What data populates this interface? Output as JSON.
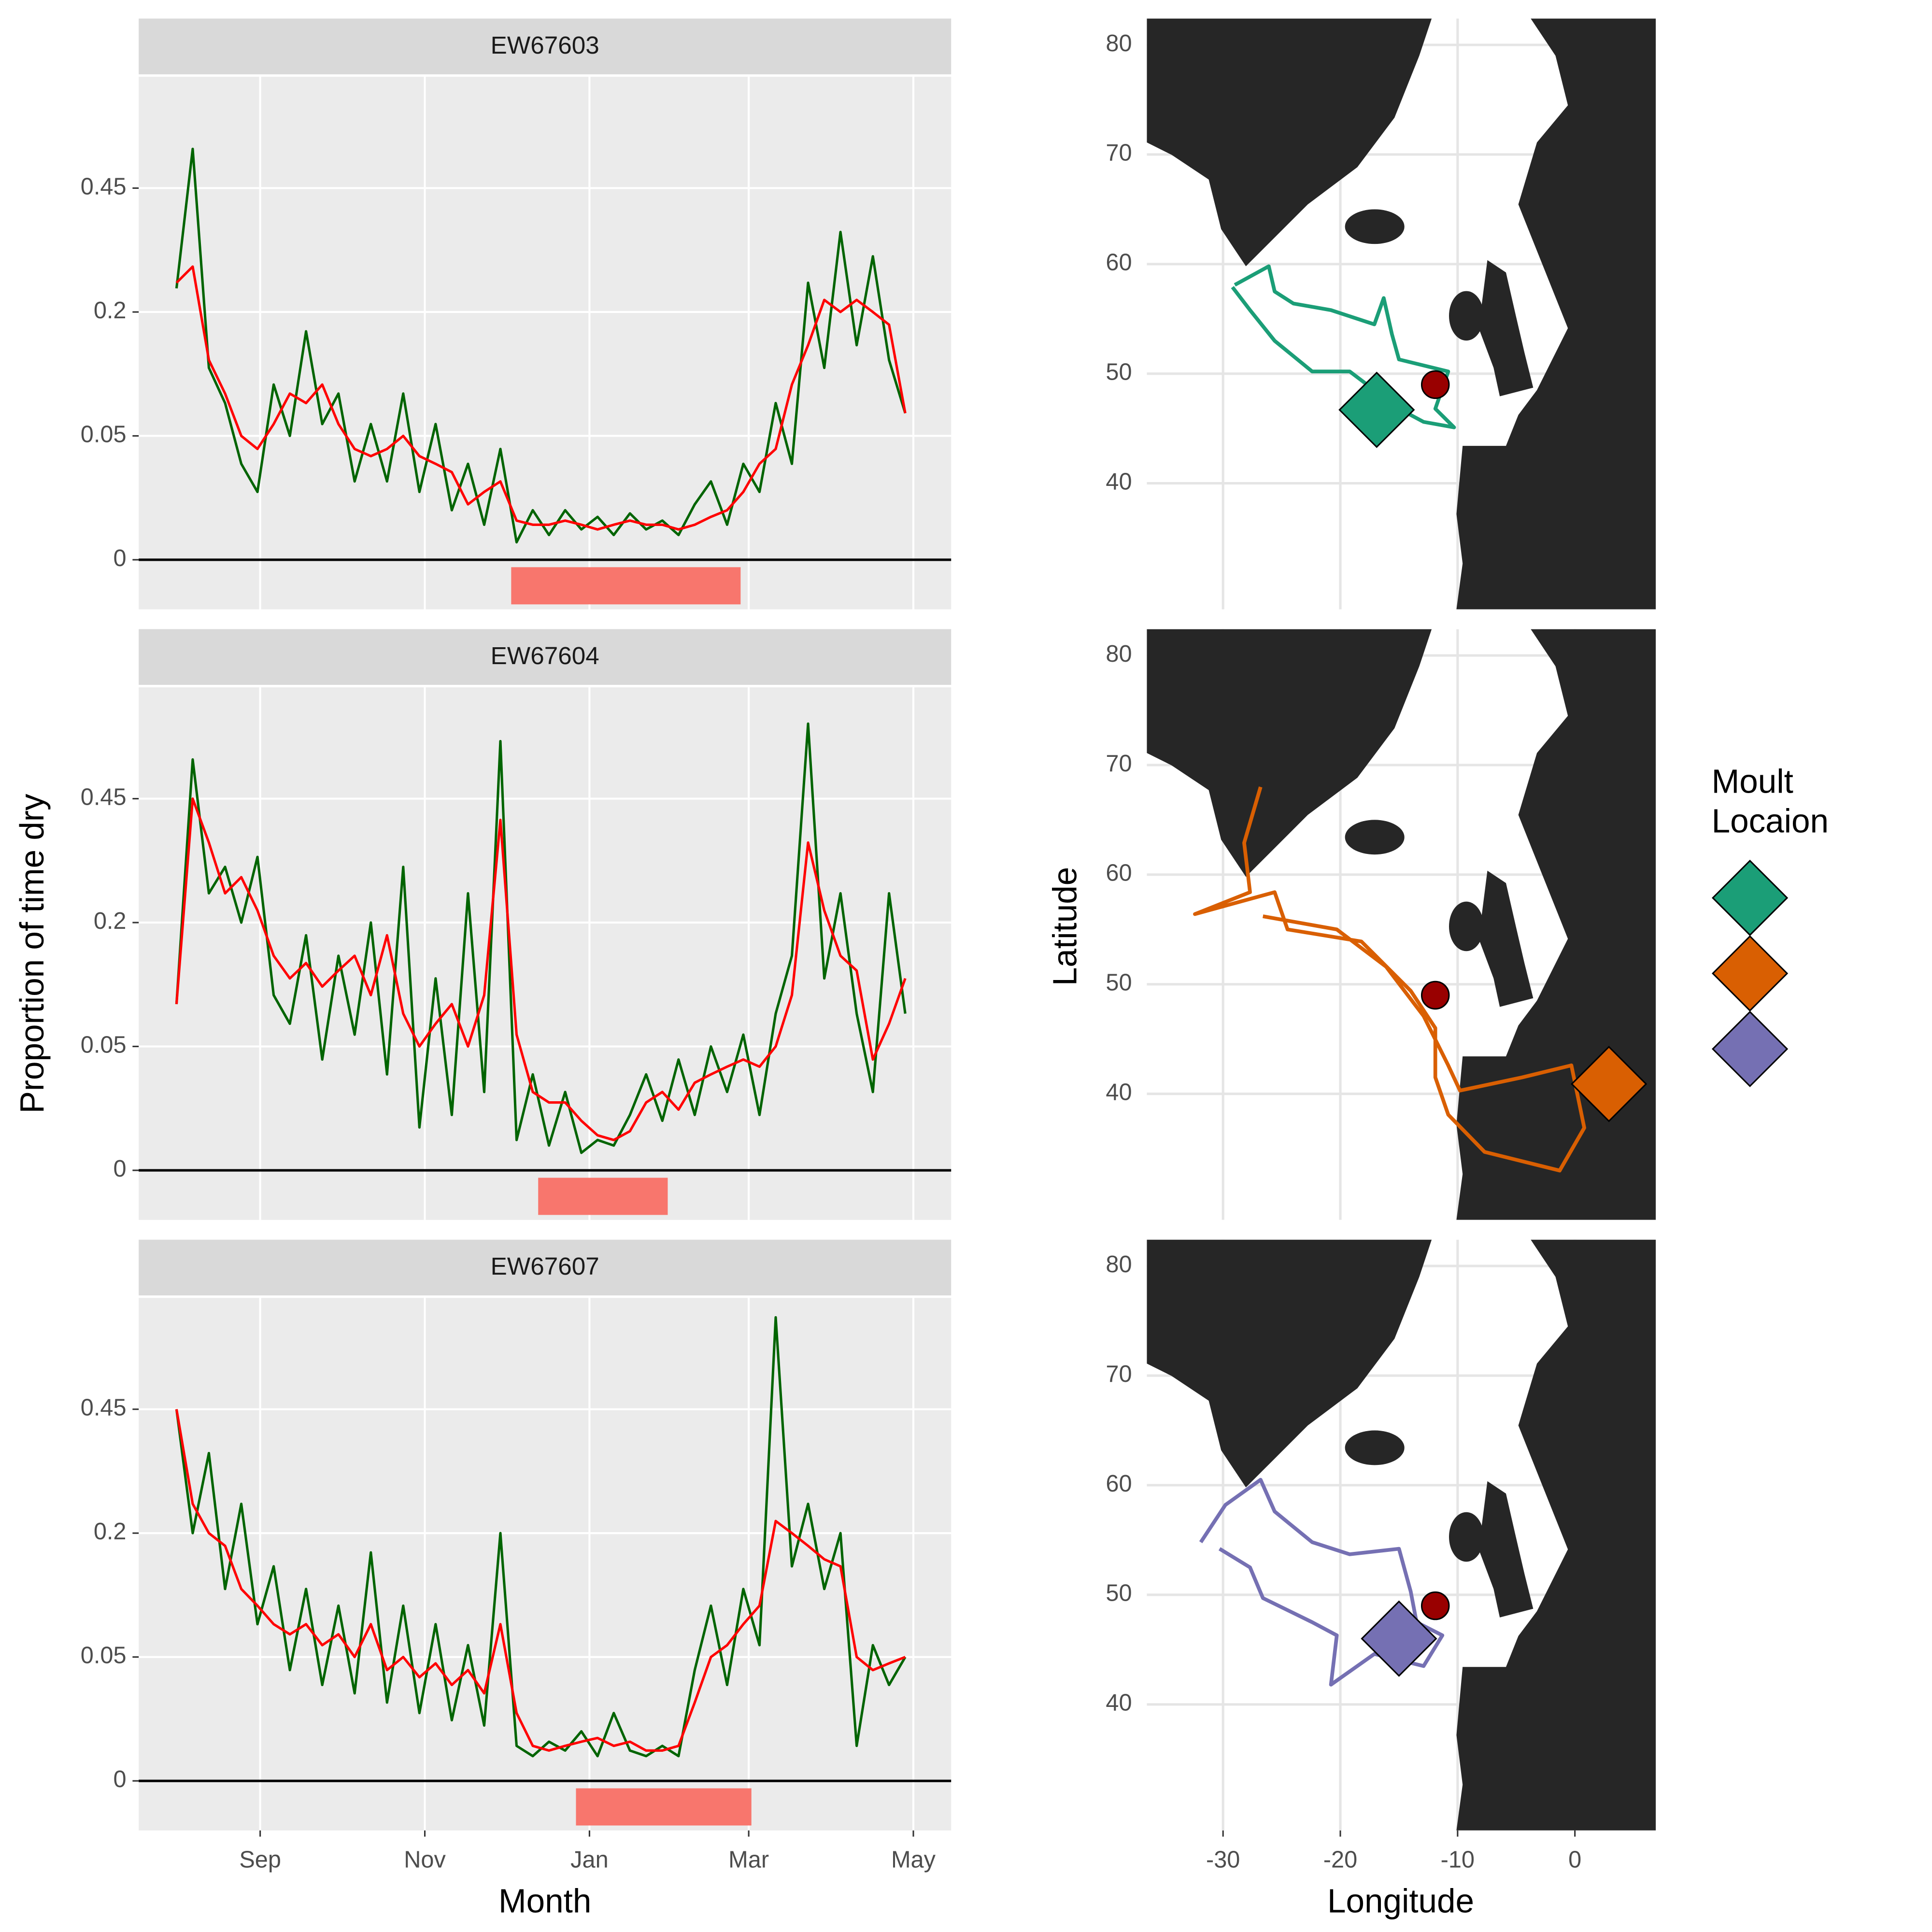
{
  "chart_data": [
    {
      "type": "line",
      "title": "EW67603",
      "yscale": "sqrt",
      "ylim": [
        -0.008,
        0.76
      ],
      "yticks": [
        0,
        0.05,
        0.2,
        0.45
      ],
      "xlim": [
        -14,
        287
      ],
      "hline": 0,
      "moult": [
        124,
        209
      ],
      "moult_color": "#F8766D",
      "x": [
        0,
        6,
        12,
        18,
        24,
        30,
        36,
        42,
        48,
        54,
        60,
        66,
        72,
        78,
        84,
        90,
        96,
        102,
        108,
        114,
        120,
        126,
        132,
        138,
        144,
        150,
        156,
        162,
        168,
        174,
        180,
        186,
        192,
        198,
        204,
        210,
        216,
        222,
        228,
        234,
        240,
        246,
        252,
        258,
        264,
        270
      ],
      "series": [
        {
          "color": "#006400",
          "values": [
            0.24,
            0.55,
            0.12,
            0.08,
            0.03,
            0.015,
            0.1,
            0.05,
            0.17,
            0.06,
            0.09,
            0.02,
            0.06,
            0.02,
            0.09,
            0.015,
            0.06,
            0.008,
            0.03,
            0.004,
            0.04,
            0.001,
            0.008,
            0.002,
            0.008,
            0.003,
            0.006,
            0.002,
            0.007,
            0.003,
            0.005,
            0.002,
            0.01,
            0.02,
            0.004,
            0.03,
            0.015,
            0.08,
            0.03,
            0.25,
            0.12,
            0.35,
            0.15,
            0.3,
            0.13,
            0.07
          ]
        },
        {
          "color": "#FF0000",
          "values": [
            0.25,
            0.28,
            0.13,
            0.09,
            0.05,
            0.04,
            0.06,
            0.09,
            0.08,
            0.1,
            0.06,
            0.04,
            0.035,
            0.04,
            0.05,
            0.035,
            0.03,
            0.025,
            0.01,
            0.015,
            0.02,
            0.005,
            0.004,
            0.004,
            0.005,
            0.004,
            0.003,
            0.004,
            0.005,
            0.004,
            0.004,
            0.003,
            0.004,
            0.006,
            0.008,
            0.015,
            0.03,
            0.04,
            0.1,
            0.15,
            0.22,
            0.2,
            0.22,
            0.2,
            0.18,
            0.07
          ]
        }
      ]
    },
    {
      "type": "line",
      "title": "EW67604",
      "ylabel": "Proportion of time dry",
      "yscale": "sqrt",
      "ylim": [
        -0.008,
        0.76
      ],
      "yticks": [
        0,
        0.05,
        0.2,
        0.45
      ],
      "xlim": [
        -14,
        287
      ],
      "hline": 0,
      "moult": [
        134,
        182
      ],
      "moult_color": "#F8766D",
      "x": [
        0,
        6,
        12,
        18,
        24,
        30,
        36,
        42,
        48,
        54,
        60,
        66,
        72,
        78,
        84,
        90,
        96,
        102,
        108,
        114,
        120,
        126,
        132,
        138,
        144,
        150,
        156,
        162,
        168,
        174,
        180,
        186,
        192,
        198,
        204,
        210,
        216,
        222,
        228,
        234,
        240,
        246,
        252,
        258,
        264,
        270
      ],
      "series": [
        {
          "color": "#006400",
          "values": [
            0.09,
            0.55,
            0.25,
            0.3,
            0.2,
            0.32,
            0.1,
            0.07,
            0.18,
            0.04,
            0.15,
            0.06,
            0.2,
            0.03,
            0.3,
            0.006,
            0.12,
            0.01,
            0.25,
            0.02,
            0.6,
            0.003,
            0.03,
            0.002,
            0.02,
            0.001,
            0.003,
            0.002,
            0.01,
            0.03,
            0.008,
            0.04,
            0.01,
            0.05,
            0.02,
            0.06,
            0.01,
            0.08,
            0.15,
            0.65,
            0.12,
            0.25,
            0.08,
            0.02,
            0.25,
            0.08
          ]
        },
        {
          "color": "#FF0000",
          "values": [
            0.09,
            0.45,
            0.35,
            0.25,
            0.28,
            0.22,
            0.15,
            0.12,
            0.14,
            0.11,
            0.13,
            0.15,
            0.1,
            0.18,
            0.08,
            0.05,
            0.07,
            0.09,
            0.05,
            0.1,
            0.4,
            0.06,
            0.02,
            0.015,
            0.015,
            0.008,
            0.004,
            0.003,
            0.005,
            0.015,
            0.02,
            0.012,
            0.025,
            0.03,
            0.035,
            0.04,
            0.035,
            0.05,
            0.1,
            0.35,
            0.22,
            0.15,
            0.13,
            0.04,
            0.07,
            0.12
          ]
        }
      ]
    },
    {
      "type": "line",
      "title": "EW67607",
      "xlabel": "Month",
      "yscale": "sqrt",
      "ylim": [
        -0.008,
        0.76
      ],
      "yticks": [
        0,
        0.05,
        0.2,
        0.45
      ],
      "xlim": [
        -14,
        287
      ],
      "hline": 0,
      "xticks": [
        {
          "value": 31,
          "label": "Sep"
        },
        {
          "value": 92,
          "label": "Nov"
        },
        {
          "value": 153,
          "label": "Jan"
        },
        {
          "value": 212,
          "label": "Mar"
        },
        {
          "value": 273,
          "label": "May"
        }
      ],
      "moult": [
        148,
        213
      ],
      "moult_color": "#F8766D",
      "x": [
        0,
        6,
        12,
        18,
        24,
        30,
        36,
        42,
        48,
        54,
        60,
        66,
        72,
        78,
        84,
        90,
        96,
        102,
        108,
        114,
        120,
        126,
        132,
        138,
        144,
        150,
        156,
        162,
        168,
        174,
        180,
        186,
        192,
        198,
        204,
        210,
        216,
        222,
        228,
        234,
        240,
        246,
        252,
        258,
        264,
        270
      ],
      "series": [
        {
          "color": "#006400",
          "values": [
            0.45,
            0.2,
            0.35,
            0.12,
            0.25,
            0.08,
            0.15,
            0.04,
            0.12,
            0.03,
            0.1,
            0.025,
            0.17,
            0.02,
            0.1,
            0.015,
            0.08,
            0.012,
            0.06,
            0.01,
            0.2,
            0.004,
            0.002,
            0.005,
            0.003,
            0.008,
            0.002,
            0.015,
            0.003,
            0.002,
            0.004,
            0.002,
            0.04,
            0.1,
            0.03,
            0.12,
            0.06,
            0.7,
            0.15,
            0.25,
            0.12,
            0.2,
            0.004,
            0.06,
            0.03,
            0.05
          ]
        },
        {
          "color": "#FF0000",
          "values": [
            0.45,
            0.25,
            0.2,
            0.18,
            0.12,
            0.1,
            0.08,
            0.07,
            0.08,
            0.06,
            0.07,
            0.05,
            0.08,
            0.04,
            0.05,
            0.035,
            0.045,
            0.03,
            0.04,
            0.025,
            0.08,
            0.015,
            0.004,
            0.003,
            0.004,
            0.005,
            0.006,
            0.004,
            0.005,
            0.003,
            0.003,
            0.004,
            0.02,
            0.05,
            0.06,
            0.08,
            0.1,
            0.22,
            0.2,
            0.18,
            0.16,
            0.15,
            0.05,
            0.04,
            0.045,
            0.05
          ]
        }
      ]
    },
    {
      "type": "map",
      "xlim": [
        -36.5,
        6.9
      ],
      "ylim": [
        28.5,
        82.4
      ],
      "yticks": [
        40,
        50,
        60,
        70,
        80
      ],
      "track": {
        "color": "#1B9E77",
        "lon": [
          -29.0,
          -26.1,
          -25.6,
          -24.0,
          -20.8,
          -17.1,
          -16.3,
          -15.6,
          -15.0,
          -10.8,
          -11.9,
          -10.3,
          -12.9,
          -15.0,
          -19.2,
          -22.4,
          -25.6,
          -27.7,
          -29.2
        ],
        "lat": [
          58.1,
          59.8,
          57.5,
          56.4,
          55.8,
          54.5,
          56.9,
          53.6,
          51.3,
          50.2,
          46.8,
          45.1,
          45.6,
          46.8,
          50.2,
          50.2,
          53.0,
          55.8,
          57.9
        ]
      },
      "moult": {
        "lon": -16.9,
        "lat": 46.7,
        "color": "#1B9E77"
      },
      "colony": {
        "lon": -11.9,
        "lat": 49.0,
        "color": "#990000"
      }
    },
    {
      "type": "map",
      "ylabel": "Latitude",
      "legend_title": [
        "Moult",
        "Locaion"
      ],
      "xlim": [
        -36.5,
        6.9
      ],
      "ylim": [
        28.5,
        82.4
      ],
      "yticks": [
        40,
        50,
        60,
        70,
        80
      ],
      "track": {
        "color": "#D95F02",
        "lon": [
          -26.8,
          -28.2,
          -27.7,
          -32.4,
          -25.6,
          -24.5,
          -18.2,
          -14.0,
          -11.9,
          -11.9,
          -10.8,
          -7.7,
          -1.3,
          0.8,
          -0.3,
          -4.5,
          -9.8,
          -10.8,
          -12.9,
          -16.1,
          -20.3,
          -26.6
        ],
        "lat": [
          68.0,
          62.9,
          58.4,
          56.4,
          58.4,
          55.0,
          53.9,
          49.4,
          46.0,
          41.5,
          38.1,
          34.7,
          33.0,
          36.9,
          42.6,
          41.5,
          40.3,
          42.6,
          47.1,
          51.6,
          55.0,
          56.2
        ]
      },
      "moult": {
        "lon": 2.9,
        "lat": 40.9,
        "color": "#D95F02"
      },
      "colony": {
        "lon": -11.9,
        "lat": 49.0,
        "color": "#990000"
      }
    },
    {
      "type": "map",
      "xlabel": "Longitude",
      "xlim": [
        -36.5,
        6.9
      ],
      "ylim": [
        28.5,
        82.4
      ],
      "yticks": [
        40,
        50,
        60,
        70,
        80
      ],
      "xticks": [
        -30,
        -20,
        -10,
        0
      ],
      "track": {
        "color": "#7570B3",
        "lon": [
          -31.9,
          -29.8,
          -26.8,
          -25.6,
          -22.4,
          -19.2,
          -15.0,
          -14.0,
          -13.5,
          -11.3,
          -12.9,
          -17.1,
          -20.8,
          -20.3,
          -22.4,
          -26.6,
          -27.7,
          -30.3
        ],
        "lat": [
          54.8,
          58.2,
          60.5,
          57.6,
          54.8,
          53.7,
          54.2,
          50.3,
          47.5,
          46.3,
          43.5,
          44.6,
          41.8,
          46.3,
          47.5,
          49.7,
          52.5,
          54.2
        ]
      },
      "moult": {
        "lon": -15.0,
        "lat": 46.0,
        "color": "#7570B3"
      },
      "colony": {
        "lon": -11.9,
        "lat": 49.0,
        "color": "#990000"
      }
    }
  ]
}
